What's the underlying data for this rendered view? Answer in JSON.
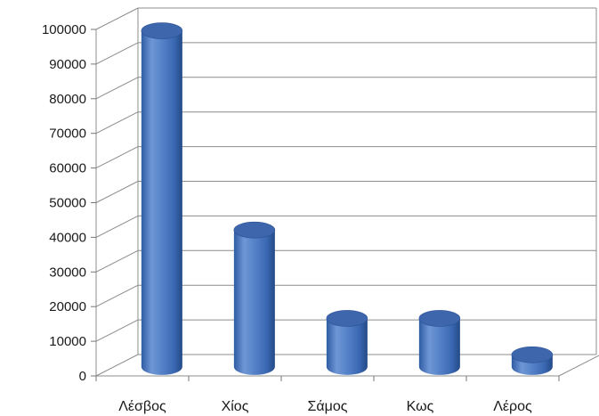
{
  "chart_data": {
    "type": "bar",
    "style": "3d-cylinder",
    "categories": [
      "Λέσβος",
      "Χίος",
      "Σάμος",
      "Κως",
      "Λέρος"
    ],
    "values": [
      97000,
      39500,
      14000,
      14000,
      3500
    ],
    "yticks": [
      "0",
      "10000",
      "20000",
      "30000",
      "40000",
      "50000",
      "60000",
      "70000",
      "80000",
      "90000",
      "100000"
    ],
    "ylim": [
      0,
      100000
    ],
    "grid": true,
    "legend": "none",
    "colors": {
      "bar_light": "#6f97d6",
      "bar_mid": "#4a78c2",
      "bar_dark": "#2a5294",
      "bar_top": "#3e66ad",
      "grid": "#8c8c8c",
      "axis": "#777777"
    }
  }
}
